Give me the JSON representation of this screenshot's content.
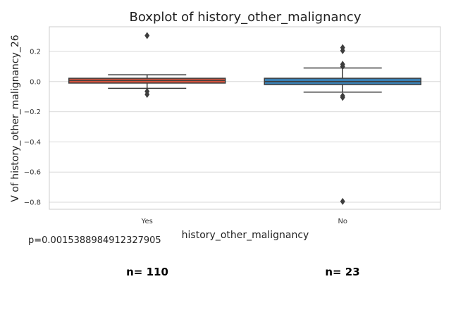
{
  "chart_data": {
    "type": "boxplot",
    "title": "Boxplot of history_other_malignancy",
    "xlabel": "history_other_malignancy",
    "ylabel": "V of history_other_malignancy_26",
    "ylim": [
      -0.85,
      0.37
    ],
    "yticks": [
      0.2,
      0.0,
      -0.2,
      -0.4,
      -0.6,
      -0.8
    ],
    "ytick_labels": [
      "0.2",
      "0.0",
      "−0.2",
      "−0.4",
      "−0.6",
      "−0.8"
    ],
    "grid": true,
    "categories": [
      "Yes",
      "No"
    ],
    "boxes": [
      {
        "category": "Yes",
        "color": "#d0533e",
        "whisker_low": -0.045,
        "q1": -0.01,
        "median": 0.008,
        "q3": 0.022,
        "whisker_high": 0.045,
        "fliers": [
          0.305,
          -0.065,
          -0.085
        ]
      },
      {
        "category": "No",
        "color": "#3a7fb2",
        "whisker_low": -0.07,
        "q1": -0.02,
        "median": 0.0,
        "q3": 0.022,
        "whisker_high": 0.09,
        "fliers": [
          0.225,
          0.205,
          0.115,
          0.1,
          -0.095,
          -0.105,
          -0.795
        ]
      }
    ]
  },
  "stats": {
    "p_value": "p=0.0015388984912327905",
    "counts": [
      "n= 110",
      "n= 23"
    ]
  }
}
